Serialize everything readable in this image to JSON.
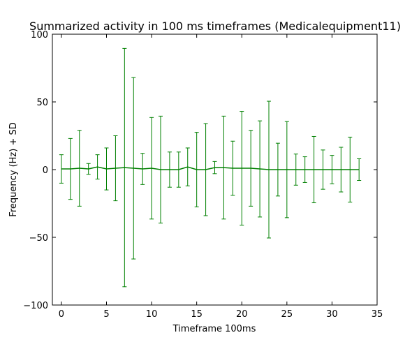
{
  "chart_data": {
    "type": "line",
    "title": "Summarized activity in 100 ms timeframes (Medicalequipment11)",
    "xlabel": "Timeframe 100ms",
    "ylabel": "Frequency (Hz) + SD",
    "xlim": [
      -1,
      35
    ],
    "ylim": [
      -100,
      100
    ],
    "x_ticks": [
      0,
      5,
      10,
      15,
      20,
      25,
      30,
      35
    ],
    "y_ticks": [
      -100,
      -50,
      0,
      50,
      100
    ],
    "grid": false,
    "legend": "none",
    "series": [
      {
        "name": "Frequency",
        "color": "#008000",
        "x": [
          0,
          1,
          2,
          3,
          4,
          5,
          6,
          7,
          8,
          9,
          10,
          11,
          12,
          13,
          14,
          15,
          16,
          17,
          18,
          19,
          20,
          21,
          22,
          23,
          24,
          25,
          26,
          27,
          28,
          29,
          30,
          31,
          32,
          33
        ],
        "values": [
          0.5,
          0.5,
          1,
          0.5,
          2,
          0.5,
          1,
          1.5,
          1,
          0.5,
          1,
          0,
          0,
          0,
          2,
          0,
          0,
          1.5,
          1.5,
          1,
          1,
          1,
          0.5,
          0,
          0,
          0,
          0,
          0,
          0,
          0,
          0,
          0,
          0,
          0
        ],
        "sd": [
          10.5,
          22.5,
          28,
          4,
          9,
          15.5,
          24,
          88,
          67,
          11.5,
          37.5,
          39.5,
          13,
          13,
          14,
          27.5,
          34,
          4.5,
          38,
          20,
          42,
          28,
          35.5,
          50.5,
          19.5,
          35.5,
          11.5,
          9.5,
          24.5,
          14.5,
          10.5,
          16.5,
          24,
          8
        ]
      }
    ]
  }
}
